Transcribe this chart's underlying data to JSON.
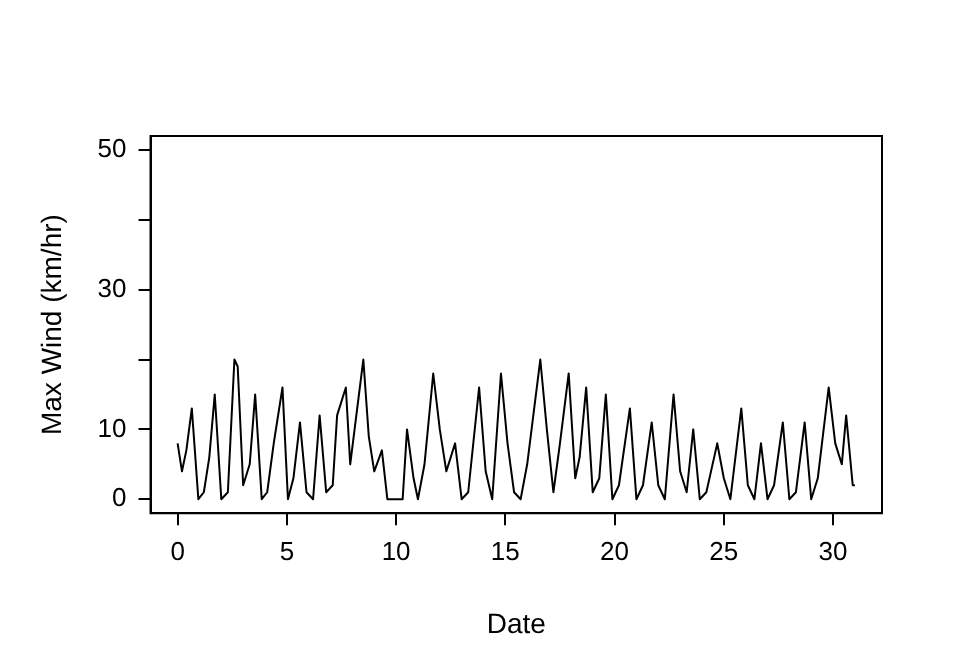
{
  "chart_data": {
    "type": "line",
    "xlabel": "Date",
    "ylabel": "Max Wind (km/hr)",
    "x": [
      0,
      0.2,
      0.4,
      0.65,
      0.95,
      1.2,
      1.45,
      1.7,
      2.0,
      2.3,
      2.6,
      2.75,
      3.0,
      3.3,
      3.55,
      3.85,
      4.1,
      4.4,
      4.8,
      5.05,
      5.3,
      5.6,
      5.9,
      6.2,
      6.5,
      6.8,
      7.1,
      7.3,
      7.7,
      7.9,
      8.1,
      8.5,
      8.75,
      9.0,
      9.35,
      9.6,
      9.9,
      10.3,
      10.5,
      10.8,
      11.0,
      11.3,
      11.7,
      12.0,
      12.3,
      12.7,
      13.0,
      13.3,
      13.8,
      14.1,
      14.4,
      14.8,
      15.1,
      15.4,
      15.7,
      16.0,
      16.6,
      16.9,
      17.2,
      17.5,
      17.9,
      18.2,
      18.4,
      18.7,
      19.0,
      19.3,
      19.6,
      19.9,
      20.2,
      20.7,
      21.0,
      21.3,
      21.7,
      22.0,
      22.3,
      22.7,
      23.0,
      23.3,
      23.6,
      23.9,
      24.2,
      24.7,
      25.0,
      25.3,
      25.8,
      26.1,
      26.4,
      26.7,
      27.0,
      27.3,
      27.7,
      28.0,
      28.3,
      28.7,
      29.0,
      29.3,
      29.8,
      30.1,
      30.4,
      30.6,
      30.9,
      31.0
    ],
    "values": [
      8,
      4,
      7,
      13,
      0,
      1,
      6,
      15,
      0,
      1,
      20,
      19,
      2,
      5,
      15,
      0,
      1,
      8,
      16,
      0,
      3,
      11,
      1,
      0,
      12,
      1,
      2,
      12,
      16,
      5,
      10,
      20,
      9,
      4,
      7,
      0,
      0,
      0,
      10,
      3,
      0,
      5,
      18,
      10,
      4,
      8,
      0,
      1,
      16,
      4,
      0,
      18,
      8,
      1,
      0,
      5,
      20,
      10,
      1,
      8,
      18,
      3,
      6,
      16,
      1,
      3,
      15,
      0,
      2,
      13,
      0,
      2,
      11,
      2,
      0,
      15,
      4,
      1,
      10,
      0,
      1,
      8,
      3,
      0,
      13,
      2,
      0,
      8,
      0,
      2,
      11,
      0,
      1,
      11,
      0,
      3,
      16,
      8,
      5,
      12,
      2,
      2
    ],
    "color": "#000000",
    "marker": "none",
    "line_style": "solid",
    "grid": false,
    "legend": false,
    "xlim": [
      -1.24,
      32.24
    ],
    "xticks": [
      0,
      5,
      10,
      15,
      20,
      25,
      30
    ],
    "ylim": [
      -2,
      52
    ],
    "yticks": [
      0,
      10,
      {
        "value": 20,
        "label": null
      },
      30,
      {
        "value": 40,
        "label": null
      },
      50
    ]
  }
}
